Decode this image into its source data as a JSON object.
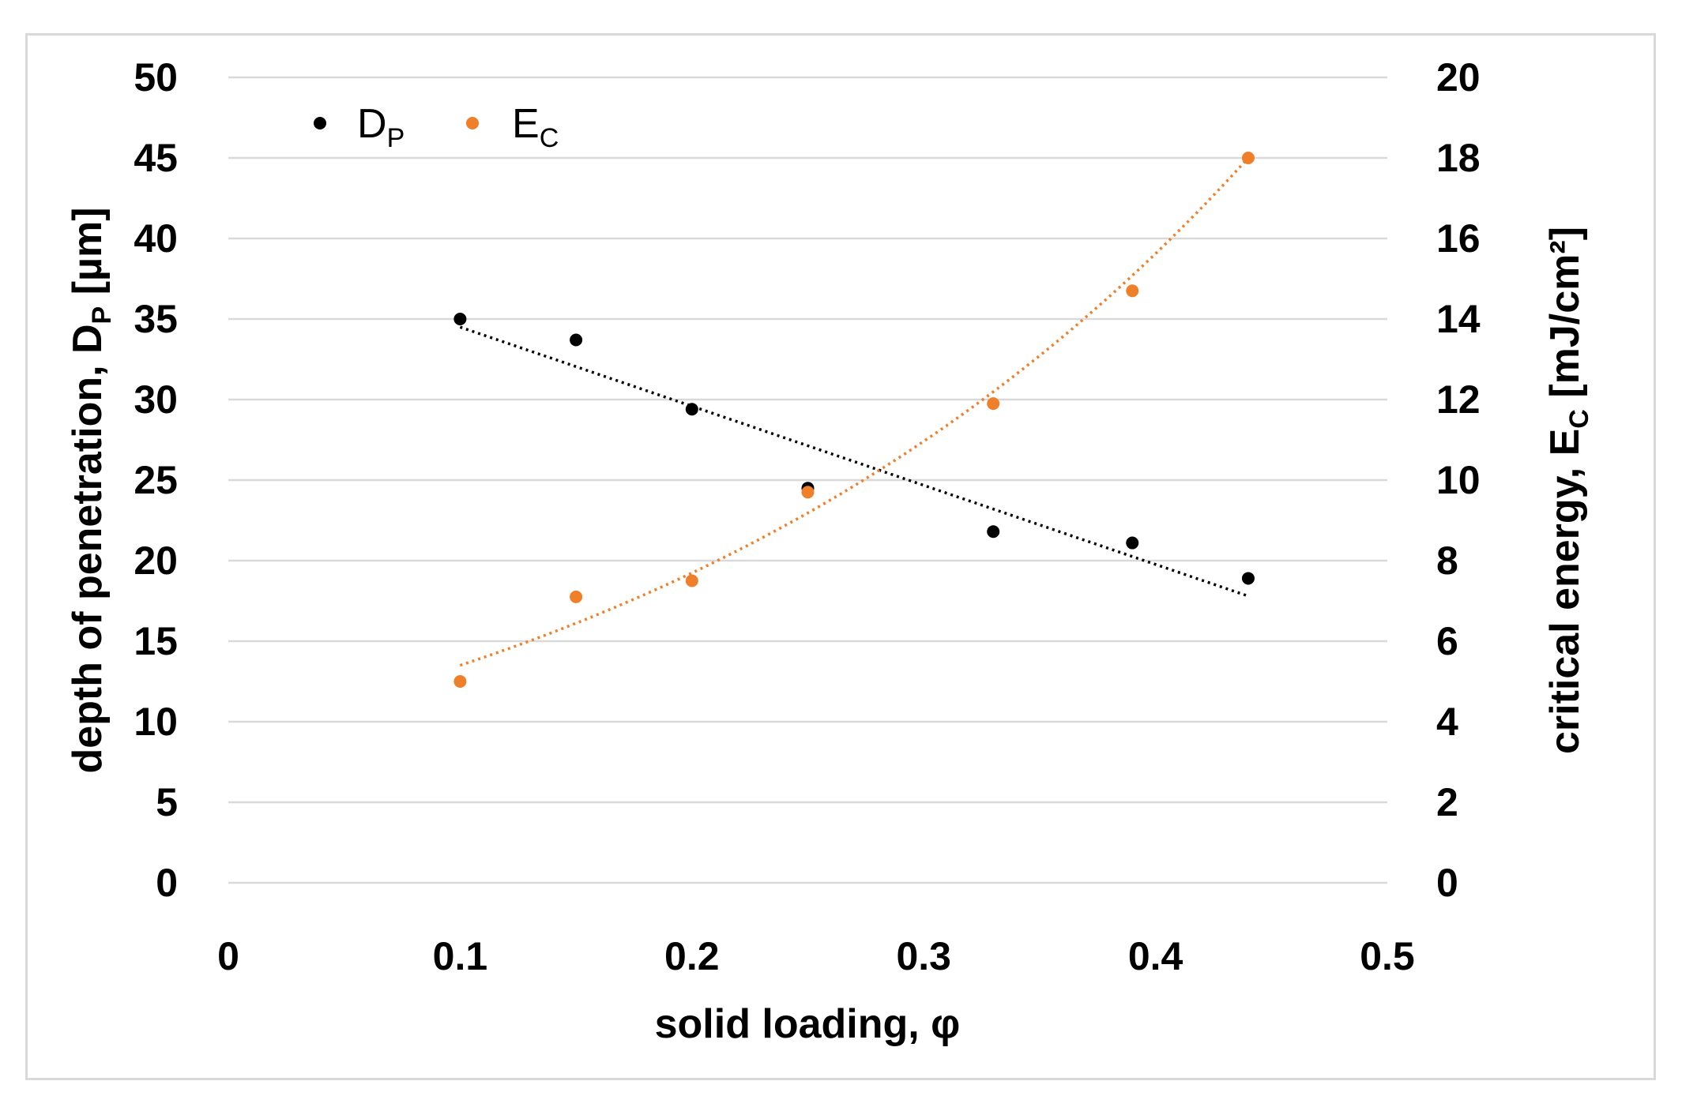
{
  "chart_data": {
    "type": "scatter",
    "title": "",
    "xlabel": "solid loading, φ",
    "ylabel_left": {
      "main": "depth of penetration, D",
      "sub": "P",
      "unit": " [µm]"
    },
    "ylabel_right": {
      "main": "critical energy, E",
      "sub": "C",
      "unit": " [mJ/cm²]"
    },
    "xlim": [
      0,
      0.5
    ],
    "ylim_left": [
      0,
      50
    ],
    "ylim_right": [
      0,
      20
    ],
    "x_ticks": [
      "0",
      "0.1",
      "0.2",
      "0.3",
      "0.4",
      "0.5"
    ],
    "y_ticks_left": [
      "0",
      "5",
      "10",
      "15",
      "20",
      "25",
      "30",
      "35",
      "40",
      "45",
      "50"
    ],
    "y_ticks_right": [
      "0",
      "2",
      "4",
      "6",
      "8",
      "10",
      "12",
      "14",
      "16",
      "18",
      "20"
    ],
    "grid": true,
    "legend_position": "top-left",
    "series": [
      {
        "name": "D",
        "name_sub": "P",
        "axis": "left",
        "color": "#000000",
        "x": [
          0.1,
          0.15,
          0.2,
          0.25,
          0.33,
          0.39,
          0.44
        ],
        "y": [
          35.0,
          33.7,
          29.4,
          24.5,
          21.8,
          21.1,
          18.9
        ],
        "trendline": {
          "type": "linear",
          "x_range": [
            0.1,
            0.44
          ],
          "y_range": [
            34.5,
            17.8
          ]
        }
      },
      {
        "name": "E",
        "name_sub": "C",
        "axis": "right",
        "color": "#f07f2a",
        "x": [
          0.1,
          0.15,
          0.2,
          0.25,
          0.33,
          0.39,
          0.44
        ],
        "y": [
          5.0,
          7.1,
          7.5,
          9.7,
          11.9,
          14.7,
          18.0
        ],
        "trendline": {
          "type": "exponential",
          "x_range": [
            0.1,
            0.44
          ],
          "y_range": [
            5.4,
            18.0
          ]
        }
      }
    ]
  }
}
